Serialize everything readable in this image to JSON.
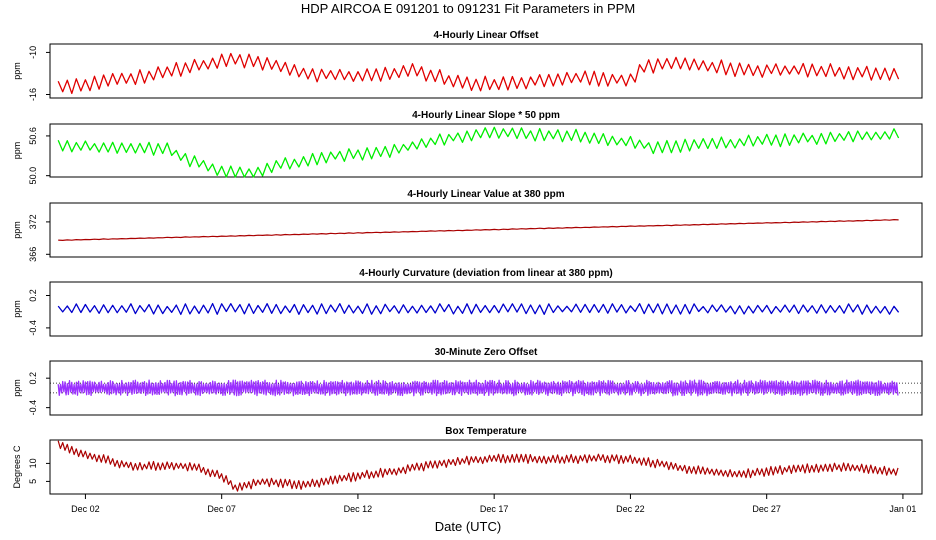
{
  "figure": {
    "title": "HDP   AIRCOA E   091201 to 091231   Fit Parameters in PPM",
    "xlabel": "Date (UTC)",
    "x_ticks": [
      {
        "day": 2,
        "label": "Dec 02"
      },
      {
        "day": 7,
        "label": "Dec 07"
      },
      {
        "day": 12,
        "label": "Dec 12"
      },
      {
        "day": 17,
        "label": "Dec 17"
      },
      {
        "day": 22,
        "label": "Dec 22"
      },
      {
        "day": 27,
        "label": "Dec 27"
      },
      {
        "day": 32,
        "label": "Jan 01"
      }
    ],
    "xlim": [
      0.7,
      32.7
    ]
  },
  "chart_data": [
    {
      "type": "line",
      "title": "4-Hourly Linear Offset",
      "ylabel": "ppm",
      "ylim": [
        -16.5,
        -8.8
      ],
      "y_ticks": [
        {
          "v": -16,
          "label": "-16"
        },
        {
          "v": -10,
          "label": "-10"
        }
      ],
      "color": "#e00000",
      "point_interval_days": 0.1667,
      "x_start_day": 1.0,
      "x_end_day": 31.85,
      "baseline": {
        "x": [
          1.0,
          4.0,
          6.0,
          7.5,
          8.5,
          10.0,
          12.0,
          14.0,
          16.0,
          17.0,
          20.0,
          22.0,
          22.5,
          24.0,
          26.0,
          28.0,
          31.85
        ],
        "y": [
          -15.0,
          -13.5,
          -12.0,
          -11.0,
          -11.5,
          -13.0,
          -13.5,
          -12.5,
          -14.5,
          -14.5,
          -13.5,
          -14.0,
          -12.0,
          -11.5,
          -12.5,
          -12.5,
          -13.0
        ]
      },
      "noise_amplitude": 1.1
    },
    {
      "type": "line",
      "title": "4-Hourly Linear Slope * 50 ppm",
      "ylabel": "ppm",
      "ylim": [
        49.98,
        50.78
      ],
      "y_ticks": [
        {
          "v": 50.0,
          "label": "50.0"
        },
        {
          "v": 50.6,
          "label": "50.6"
        }
      ],
      "color": "#00ee00",
      "point_interval_days": 0.1667,
      "x_start_day": 1.0,
      "x_end_day": 31.85,
      "baseline": {
        "x": [
          1.0,
          3.0,
          5.0,
          6.0,
          7.0,
          8.0,
          9.0,
          11.0,
          13.0,
          15.0,
          17.0,
          20.0,
          22.0,
          23.0,
          25.0,
          28.0,
          31.85
        ],
        "y": [
          50.45,
          50.42,
          50.4,
          50.2,
          50.08,
          50.02,
          50.15,
          50.3,
          50.35,
          50.55,
          50.65,
          50.6,
          50.5,
          50.42,
          50.48,
          50.55,
          50.62
        ]
      },
      "noise_amplitude": 0.1
    },
    {
      "type": "line",
      "title": "4-Hourly Linear Value at 380 ppm",
      "ylabel": "ppm",
      "ylim": [
        365.5,
        375.5
      ],
      "y_ticks": [
        {
          "v": 366,
          "label": "366"
        },
        {
          "v": 372,
          "label": "372"
        }
      ],
      "color": "#aa0000",
      "point_interval_days": 0.1667,
      "x_start_day": 1.0,
      "x_end_day": 31.85,
      "baseline": {
        "x": [
          1.0,
          31.85
        ],
        "y": [
          368.6,
          372.4
        ]
      },
      "noise_amplitude": 0.05
    },
    {
      "type": "line",
      "title": "4-Hourly Curvature (deviation from linear at 380 ppm)",
      "ylabel": "ppm",
      "ylim": [
        -0.55,
        0.45
      ],
      "y_ticks": [
        {
          "v": -0.4,
          "label": "-0.4"
        },
        {
          "v": 0.2,
          "label": "0.2"
        }
      ],
      "color": "#0000cc",
      "point_interval_days": 0.1667,
      "x_start_day": 1.0,
      "x_end_day": 31.85,
      "baseline": {
        "x": [
          1.0,
          31.85
        ],
        "y": [
          -0.05,
          -0.05
        ]
      },
      "noise_amplitude": 0.1
    },
    {
      "type": "line",
      "title": "30-Minute Zero Offset",
      "ylabel": "ppm",
      "ylim": [
        -0.55,
        0.55
      ],
      "y_ticks": [
        {
          "v": -0.4,
          "label": "-0.4"
        },
        {
          "v": 0.2,
          "label": "0.2"
        }
      ],
      "reference_lines": [
        0.1,
        -0.1
      ],
      "color": "#9b30ff",
      "point_interval_days": 0.0417,
      "x_start_day": 1.0,
      "x_end_day": 31.85,
      "baseline": {
        "x": [
          1.0,
          31.85
        ],
        "y": [
          0.0,
          0.0
        ]
      },
      "noise_amplitude": 0.16
    },
    {
      "type": "line",
      "title": "Box Temperature",
      "ylabel": "Degrees C",
      "ylim": [
        1.5,
        16.5
      ],
      "y_ticks": [
        {
          "v": 5,
          "label": "5"
        },
        {
          "v": 10,
          "label": "10"
        }
      ],
      "color": "#aa0000",
      "point_interval_days": 0.0833,
      "x_start_day": 1.0,
      "x_end_day": 31.85,
      "baseline": {
        "x": [
          1.0,
          1.6,
          2.5,
          3.2,
          4.0,
          5.0,
          6.0,
          7.0,
          7.5,
          8.5,
          10.0,
          12.0,
          13.5,
          15.0,
          17.0,
          19.0,
          21.0,
          22.0,
          23.0,
          24.0,
          26.0,
          28.0,
          30.0,
          31.85
        ],
        "y": [
          15.5,
          13.0,
          11.5,
          10.0,
          9.0,
          9.5,
          9.0,
          6.5,
          3.0,
          5.0,
          4.0,
          6.5,
          8.0,
          10.0,
          11.5,
          11.0,
          11.5,
          11.0,
          10.0,
          8.5,
          7.0,
          8.5,
          9.0,
          7.5
        ]
      },
      "noise_amplitude": 1.3
    }
  ]
}
